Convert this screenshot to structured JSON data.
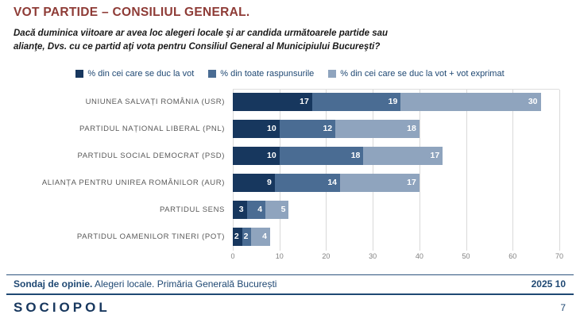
{
  "header": {
    "title": "VOT PARTIDE – CONSILIUL GENERAL.",
    "subtitle_line1": "Dacă duminica viitoare ar avea loc alegeri locale şi ar candida următoarele partide sau",
    "subtitle_line2": "alianţe, Dvs. cu ce partid aţi vota pentru Consiliul General al Municipiului Bucureşti?"
  },
  "chart_data": {
    "type": "bar",
    "orientation": "horizontal",
    "stacked": true,
    "categories": [
      "UNIUNEA SALVAȚI ROMÂNIA (USR)",
      "PARTIDUL NAȚIONAL LIBERAL (PNL)",
      "PARTIDUL SOCIAL DEMOCRAT (PSD)",
      "ALIANȚA PENTRU UNIREA ROMÂNILOR (AUR)",
      "PARTIDUL SENS",
      "PARTIDUL OAMENILOR TINERI (POT)"
    ],
    "series": [
      {
        "name": "% din cei care se duc la vot",
        "color": "#17375E",
        "values": [
          17,
          10,
          10,
          9,
          3,
          2
        ]
      },
      {
        "name": "% din toate raspunsurile",
        "color": "#4A6C93",
        "values": [
          19,
          12,
          18,
          14,
          4,
          2
        ]
      },
      {
        "name": "% din cei care se duc la vot + vot exprimat",
        "color": "#8FA4BE",
        "values": [
          30,
          18,
          17,
          17,
          5,
          4
        ]
      }
    ],
    "xlim": [
      0,
      70
    ],
    "x_ticks": [
      0,
      10,
      20,
      30,
      40,
      50,
      60,
      70
    ],
    "grid": true,
    "legend_position": "top",
    "data_label_color": "#ffffff"
  },
  "footer": {
    "source_bold": "Sondaj de opinie.",
    "source_rest": " Alegeri locale. Primăria Generală București",
    "date": "2025 10",
    "logo_text": "SOCIOPOL",
    "page_number": "7"
  }
}
